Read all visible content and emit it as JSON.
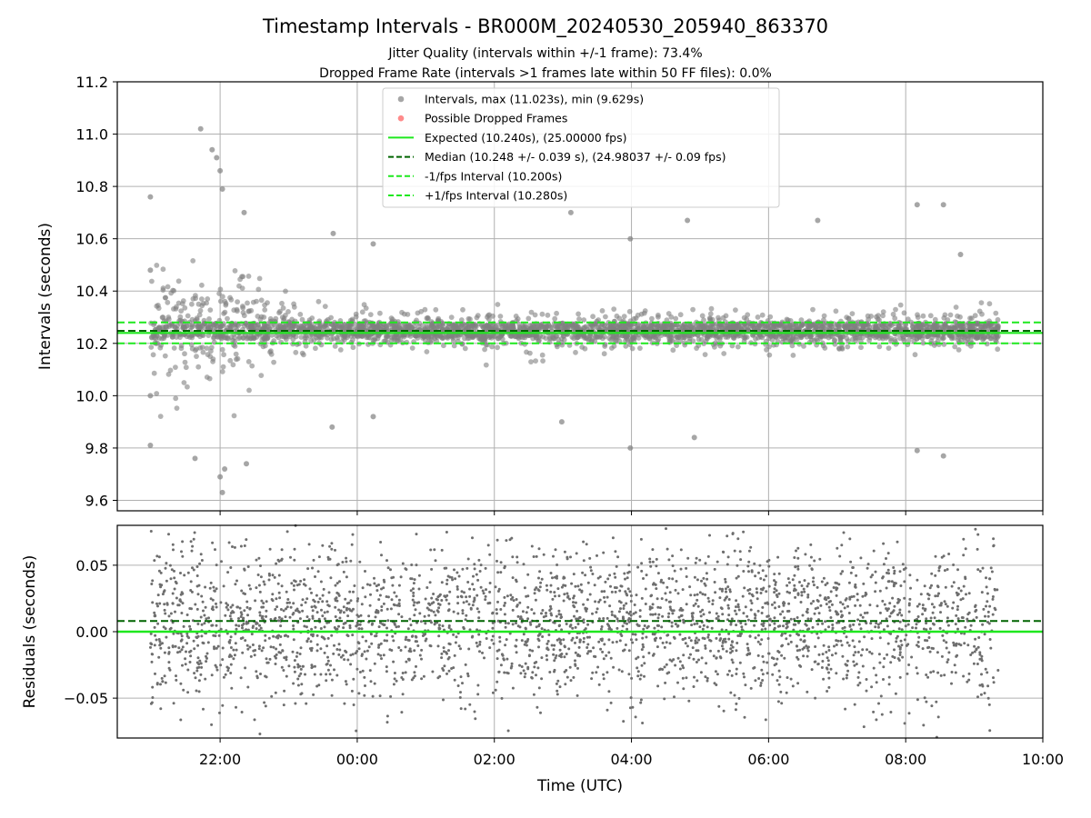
{
  "page": {
    "title": "Timestamp Intervals - BR000M_20240530_205940_863370",
    "subtitle_1": "Jitter Quality (intervals within +/-1 frame): 73.4%",
    "subtitle_2": "Dropped Frame Rate (intervals >1 frames late within 50 FF files): 0.0%"
  },
  "colors": {
    "intervals": "#808080",
    "dropped": "#ff5a5a",
    "expected": "#1ee81e",
    "median": "#006400",
    "fps_band": "#1ee81e",
    "grid": "#b0b0b0",
    "residuals": "#6e6e6e"
  },
  "chart_data": [
    {
      "id": "intervals",
      "type": "scatter",
      "ylabel": "Intervals (seconds)",
      "ylim": [
        9.56,
        11.2
      ],
      "yticks": [
        9.6,
        9.8,
        10.0,
        10.2,
        10.4,
        10.6,
        10.8,
        11.0,
        11.2
      ],
      "ytick_labels": [
        "9.6",
        "9.8",
        "10.0",
        "10.2",
        "10.4",
        "10.6",
        "10.8",
        "11.0",
        "11.2"
      ],
      "x_range_hours_utc": [
        "20:30",
        "10:00"
      ],
      "grid": true,
      "legend_placement": "upper-center",
      "legend": [
        {
          "label": "Intervals, max (11.023s), min (9.629s)",
          "kind": "point",
          "color": "#808080"
        },
        {
          "label": "Possible Dropped Frames",
          "kind": "point",
          "color": "#ff5a5a"
        },
        {
          "label": "Expected (10.240s), (25.00000 fps)",
          "kind": "solid",
          "color": "#1ee81e"
        },
        {
          "label": "Median (10.248 +/- 0.039 s), (24.98037 +/- 0.09 fps)",
          "kind": "dashed",
          "color": "#006400"
        },
        {
          "label": "-1/fps Interval (10.200s)",
          "kind": "dashed",
          "color": "#1ee81e"
        },
        {
          "label": "+1/fps Interval (10.280s)",
          "kind": "dashed",
          "color": "#1ee81e"
        }
      ],
      "reference_lines": [
        {
          "name": "Expected",
          "y": 10.24,
          "style": "solid"
        },
        {
          "name": "Median",
          "y": 10.248,
          "style": "dashed"
        },
        {
          "name": "-1/fps Interval",
          "y": 10.2,
          "style": "dashed"
        },
        {
          "name": "+1/fps Interval",
          "y": 10.28,
          "style": "dashed"
        }
      ],
      "x_start": "20:59",
      "x_end": "09:21",
      "max": 11.023,
      "min": 9.629,
      "median": 10.248,
      "spread": 0.039,
      "dropped_frames": 0,
      "notable_points": [
        {
          "x": "20:59",
          "y": 10.76
        },
        {
          "x": "20:59",
          "y": 10.48
        },
        {
          "x": "20:59",
          "y": 9.81
        },
        {
          "x": "20:59",
          "y": 10.0
        },
        {
          "x": "21:43",
          "y": 11.02
        },
        {
          "x": "21:53",
          "y": 10.94
        },
        {
          "x": "21:57",
          "y": 10.91
        },
        {
          "x": "22:00",
          "y": 10.86
        },
        {
          "x": "22:02",
          "y": 10.79
        },
        {
          "x": "22:00",
          "y": 9.69
        },
        {
          "x": "22:02",
          "y": 9.63
        },
        {
          "x": "22:04",
          "y": 9.72
        },
        {
          "x": "22:23",
          "y": 9.74
        },
        {
          "x": "21:38",
          "y": 9.76
        },
        {
          "x": "22:21",
          "y": 10.7
        },
        {
          "x": "23:39",
          "y": 10.62
        },
        {
          "x": "00:14",
          "y": 10.58
        },
        {
          "x": "23:38",
          "y": 9.88
        },
        {
          "x": "00:14",
          "y": 9.92
        },
        {
          "x": "03:07",
          "y": 10.7
        },
        {
          "x": "02:59",
          "y": 9.9
        },
        {
          "x": "03:59",
          "y": 10.6
        },
        {
          "x": "03:59",
          "y": 9.8
        },
        {
          "x": "04:49",
          "y": 10.67
        },
        {
          "x": "04:55",
          "y": 9.84
        },
        {
          "x": "06:43",
          "y": 10.67
        },
        {
          "x": "08:10",
          "y": 10.73
        },
        {
          "x": "08:33",
          "y": 10.73
        },
        {
          "x": "08:10",
          "y": 9.79
        },
        {
          "x": "08:33",
          "y": 9.77
        },
        {
          "x": "08:48",
          "y": 10.54
        }
      ]
    },
    {
      "id": "residuals",
      "type": "scatter",
      "xlabel": "Time (UTC)",
      "ylabel": "Residuals (seconds)",
      "ylim": [
        -0.08,
        0.08
      ],
      "yticks": [
        -0.05,
        0.0,
        0.05
      ],
      "ytick_labels": [
        "−0.05",
        "0.00",
        "0.05"
      ],
      "x_range_hours_utc": [
        "20:30",
        "10:00"
      ],
      "xticks": [
        "22:00",
        "00:00",
        "02:00",
        "04:00",
        "06:00",
        "08:00",
        "10:00"
      ],
      "grid": true,
      "reference_lines": [
        {
          "name": "Expected",
          "y": 0.0,
          "style": "solid"
        },
        {
          "name": "Median",
          "y": 0.008,
          "style": "dashed"
        }
      ],
      "x_start": "20:59",
      "x_end": "09:21",
      "spread": 0.039
    }
  ]
}
